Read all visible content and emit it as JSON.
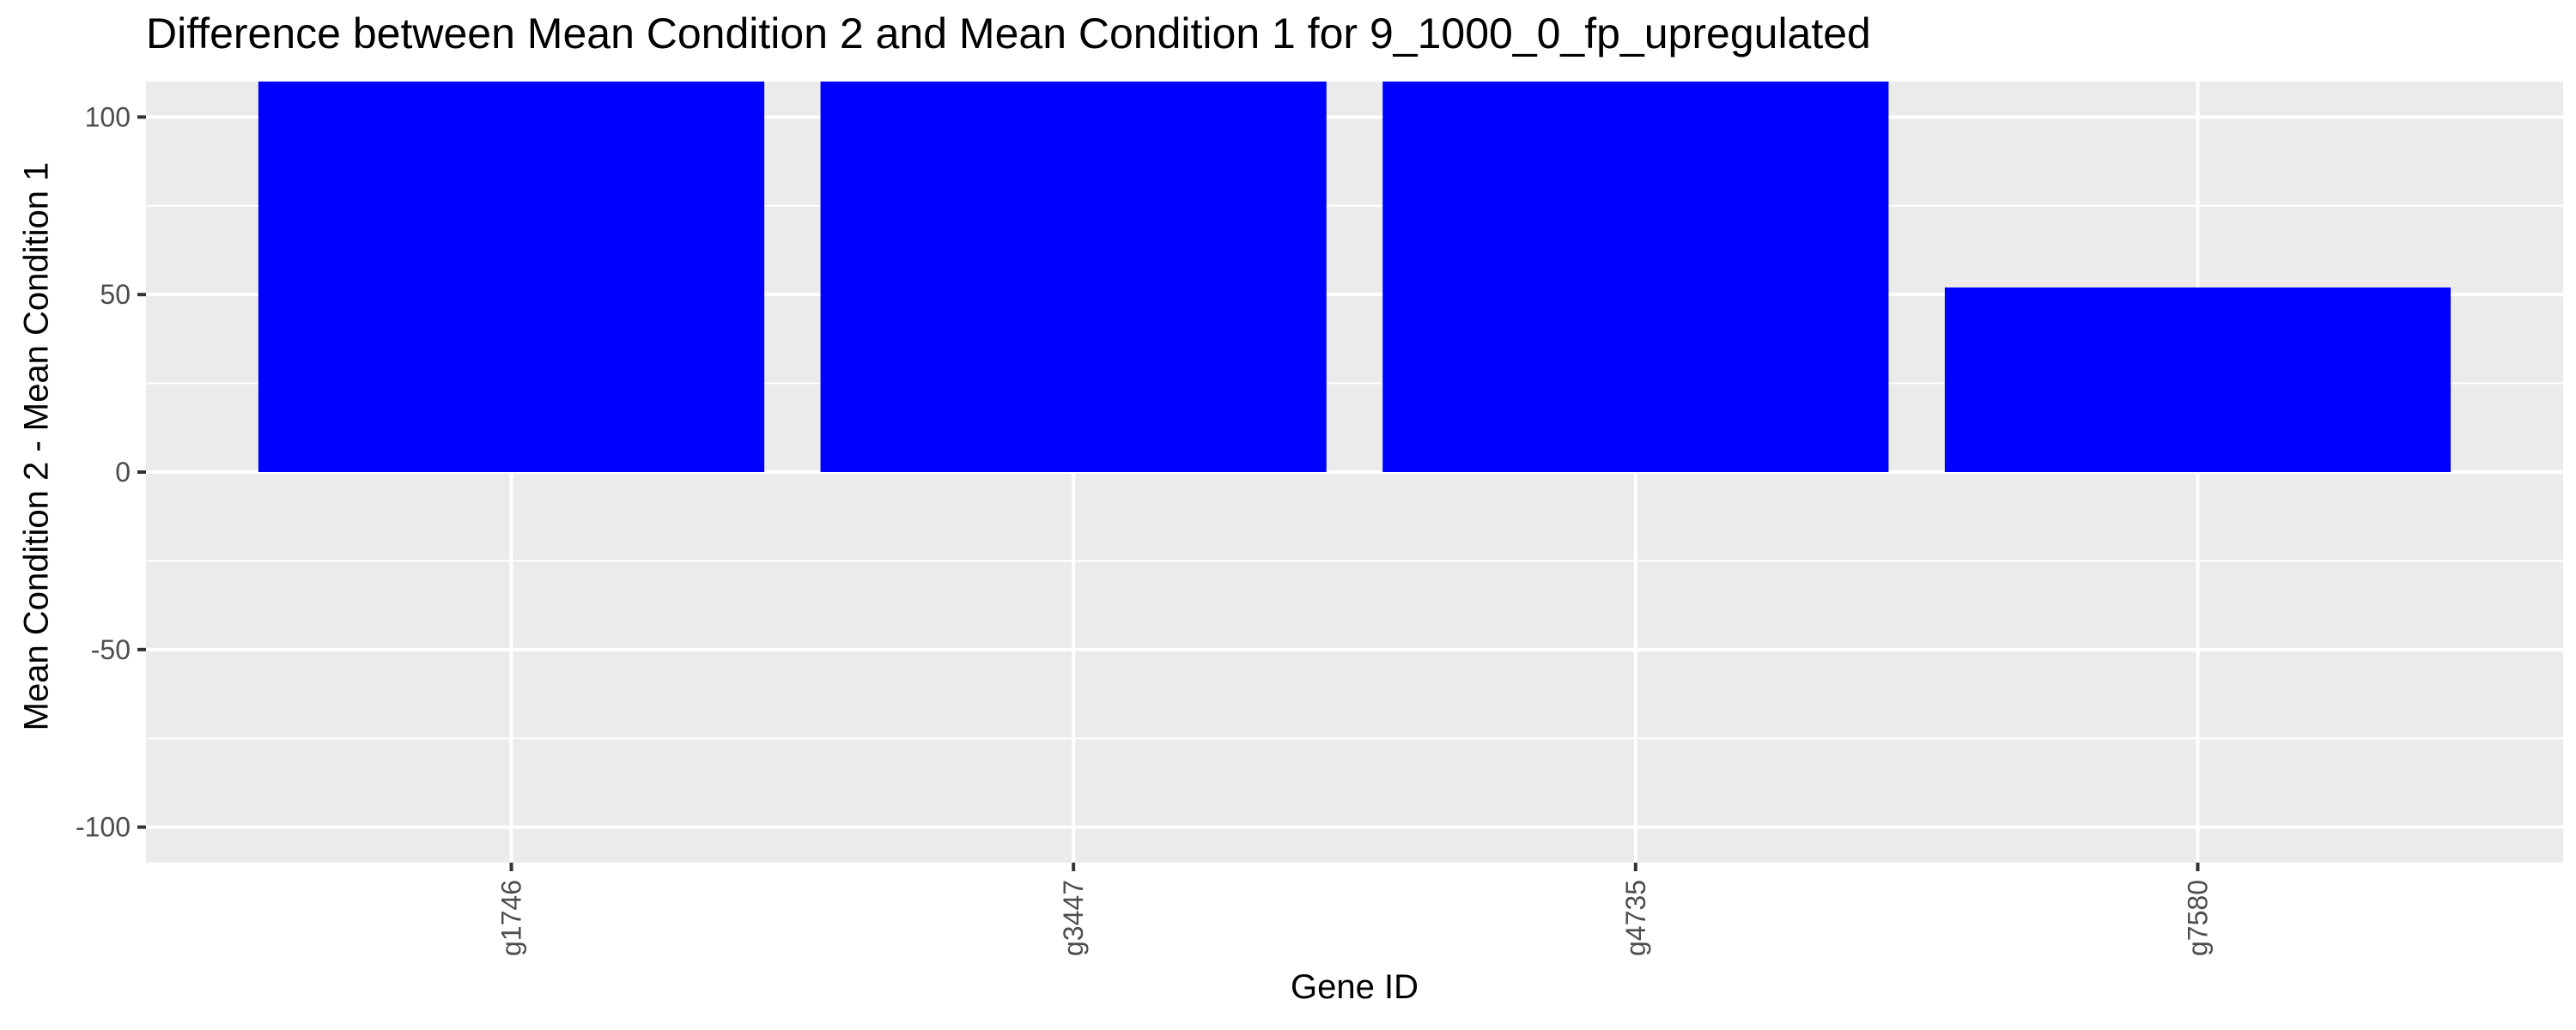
{
  "chart_data": {
    "type": "bar",
    "title": "Difference between Mean Condition 2 and Mean Condition 1 for 9_1000_0_fp_upregulated",
    "xlabel": "Gene ID",
    "ylabel": "Mean Condition 2 - Mean Condition 1",
    "categories": [
      "g1746",
      "g3447",
      "g4735",
      "g7580"
    ],
    "values": [
      110,
      110,
      110,
      52
    ],
    "ylim": [
      -110,
      110
    ],
    "yticks": [
      -100,
      -50,
      0,
      50,
      100
    ],
    "ytick_labels": [
      "-100",
      "-50",
      "0",
      "50",
      "100"
    ],
    "grid": true,
    "legend": "none",
    "colors": {
      "bar": "#0000ff",
      "panel": "#ebebeb",
      "grid": "#ffffff",
      "tick_text": "#4d4d4d",
      "tick_mark": "#333333"
    }
  }
}
